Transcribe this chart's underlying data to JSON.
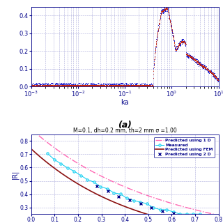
{
  "fig_width": 3.2,
  "fig_height": 3.2,
  "dpi": 100,
  "background_color": "#ffffff",
  "panel_a": {
    "xlabel": "ka",
    "ylabel": "",
    "xlim": [
      0.001,
      10
    ],
    "ylim": [
      0,
      0.45
    ],
    "yticks": [
      0,
      0.1,
      0.2,
      0.3,
      0.4
    ],
    "grid_color": "#8888cc",
    "label_a": "(a)"
  },
  "panel_b": {
    "title": "M=0.1, dh=0.2 mm, th=2 mm σ =1.00",
    "ylabel": "|R|",
    "xlim": [
      0,
      0.8
    ],
    "ylim": [
      0.25,
      0.85
    ],
    "yticks": [
      0.3,
      0.4,
      0.5,
      0.6,
      0.7,
      0.8
    ],
    "xticks": [
      0.0,
      0.1,
      0.2,
      0.3,
      0.4,
      0.5,
      0.6,
      0.7,
      0.8
    ],
    "grid_color": "#8888cc",
    "legend_entries": [
      "Predicted using 1 D",
      "Measured",
      "Predicted using FEM",
      "Predicted using 2 D"
    ],
    "color_1d": "#ff69b4",
    "color_meas": "#00ccee",
    "color_fem": "#8b1010",
    "color_2d": "#00008b"
  }
}
